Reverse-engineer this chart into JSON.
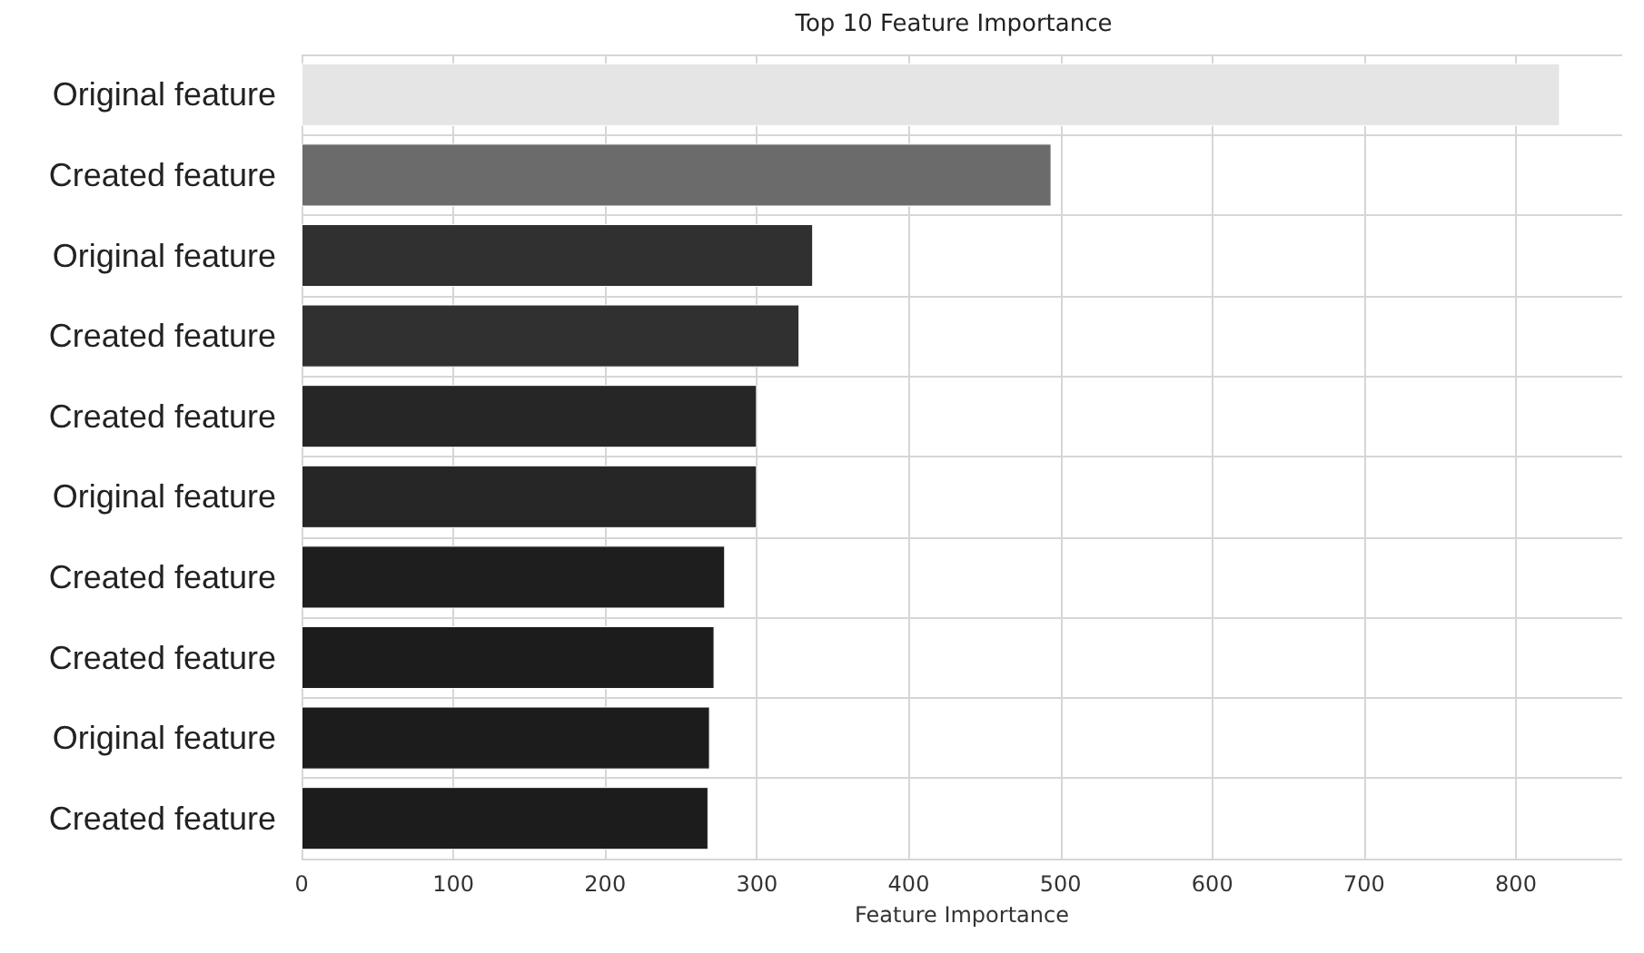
{
  "chart_data": {
    "type": "bar",
    "orientation": "horizontal",
    "title": "Top 10 Feature Importance",
    "xlabel": "Feature Importance",
    "categories": [
      "Original feature",
      "Created feature",
      "Original feature",
      "Created feature",
      "Created feature",
      "Original feature",
      "Created feature",
      "Created feature",
      "Original feature",
      "Created feature"
    ],
    "values": [
      829,
      494,
      337,
      328,
      300,
      300,
      279,
      272,
      269,
      268
    ],
    "colors": [
      "#e5e5e5",
      "#6b6b6b",
      "#303030",
      "#303030",
      "#262626",
      "#262626",
      "#1e1e1e",
      "#1c1c1c",
      "#1c1c1c",
      "#1c1c1c"
    ],
    "xlim": [
      0,
      870
    ],
    "xticks": [
      0,
      100,
      200,
      300,
      400,
      500,
      600,
      700,
      800
    ],
    "grid": true
  }
}
